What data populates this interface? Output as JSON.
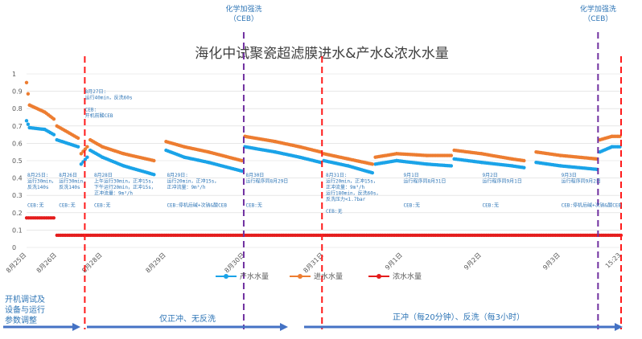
{
  "colors": {
    "product": "#1aa3e8",
    "feed": "#ed7d31",
    "concentrate": "#e41c1c",
    "red_line": "#ff1a1a",
    "purple_line": "#7030a0",
    "annotation": "#2e75b6",
    "grid": "#d9d9d9",
    "arrow": "#4472c4"
  },
  "chart_data": {
    "type": "scatter",
    "title": "海化中试聚瓷超滤膜进水&产水&浓水水量",
    "ylim": [
      0,
      1
    ],
    "yticks": [
      "0",
      "0.1",
      "0.2",
      "0.3",
      "0.4",
      "0.5",
      "0.6",
      "0.7",
      "0.8",
      "0.9",
      "1"
    ],
    "xlim": [
      0,
      9.8
    ],
    "xticks": [
      {
        "x": 0,
        "label": "8月25日"
      },
      {
        "x": 0.5,
        "label": "8月26日"
      },
      {
        "x": 1.25,
        "label": "8月28日"
      },
      {
        "x": 2.3,
        "label": "8月29日"
      },
      {
        "x": 3.6,
        "label": "8月30日"
      },
      {
        "x": 4.9,
        "label": "8月31日"
      },
      {
        "x": 6.2,
        "label": "9月1日"
      },
      {
        "x": 7.5,
        "label": "9月2日"
      },
      {
        "x": 8.8,
        "label": "9月3日"
      },
      {
        "x": 9.8,
        "label": "15:23"
      }
    ],
    "legend": {
      "placement": "bottom",
      "items": [
        "产水水量",
        "进水水量",
        "浓水水量"
      ]
    },
    "series": [
      {
        "name": "产水水量",
        "color_key": "product",
        "segments": [
          [
            [
              0,
              0.73
            ],
            [
              0.05,
              0.69
            ],
            [
              0.3,
              0.68
            ],
            [
              0.45,
              0.65
            ]
          ],
          [
            [
              0.5,
              0.62
            ],
            [
              0.85,
              0.58
            ]
          ],
          [
            [
              0.9,
              0.48
            ],
            [
              1.0,
              0.52
            ]
          ],
          [
            [
              1.05,
              0.56
            ],
            [
              1.25,
              0.52
            ],
            [
              1.6,
              0.47
            ],
            [
              2.1,
              0.42
            ]
          ],
          [
            [
              2.3,
              0.56
            ],
            [
              2.6,
              0.52
            ],
            [
              3.0,
              0.49
            ],
            [
              3.55,
              0.44
            ]
          ],
          [
            [
              3.6,
              0.58
            ],
            [
              4.1,
              0.55
            ],
            [
              4.5,
              0.52
            ],
            [
              4.85,
              0.49
            ]
          ],
          [
            [
              4.9,
              0.5
            ],
            [
              5.3,
              0.47
            ],
            [
              5.7,
              0.43
            ]
          ],
          [
            [
              5.75,
              0.48
            ],
            [
              6.1,
              0.5
            ],
            [
              6.6,
              0.48
            ],
            [
              7.0,
              0.47
            ]
          ],
          [
            [
              7.05,
              0.51
            ],
            [
              7.5,
              0.49
            ],
            [
              8.0,
              0.47
            ],
            [
              8.2,
              0.46
            ]
          ],
          [
            [
              8.4,
              0.49
            ],
            [
              8.8,
              0.47
            ],
            [
              9.4,
              0.45
            ]
          ],
          [
            [
              9.45,
              0.55
            ],
            [
              9.65,
              0.58
            ],
            [
              9.78,
              0.58
            ]
          ]
        ]
      },
      {
        "name": "进水水量",
        "color_key": "feed",
        "segments": [
          [
            [
              0,
              0.95
            ],
            [
              0.05,
              0.82
            ],
            [
              0.3,
              0.78
            ],
            [
              0.45,
              0.74
            ]
          ],
          [
            [
              0.5,
              0.7
            ],
            [
              0.85,
              0.63
            ]
          ],
          [
            [
              0.9,
              0.54
            ],
            [
              1.0,
              0.58
            ]
          ],
          [
            [
              1.05,
              0.62
            ],
            [
              1.25,
              0.58
            ],
            [
              1.6,
              0.54
            ],
            [
              2.1,
              0.5
            ]
          ],
          [
            [
              2.3,
              0.61
            ],
            [
              2.6,
              0.58
            ],
            [
              3.0,
              0.55
            ],
            [
              3.55,
              0.5
            ]
          ],
          [
            [
              3.6,
              0.64
            ],
            [
              4.1,
              0.61
            ],
            [
              4.5,
              0.58
            ],
            [
              4.85,
              0.55
            ]
          ],
          [
            [
              4.9,
              0.54
            ],
            [
              5.3,
              0.51
            ],
            [
              5.7,
              0.48
            ]
          ],
          [
            [
              5.75,
              0.52
            ],
            [
              6.1,
              0.54
            ],
            [
              6.6,
              0.53
            ],
            [
              7.0,
              0.53
            ]
          ],
          [
            [
              7.05,
              0.56
            ],
            [
              7.5,
              0.54
            ],
            [
              8.0,
              0.51
            ],
            [
              8.2,
              0.5
            ]
          ],
          [
            [
              8.4,
              0.55
            ],
            [
              8.8,
              0.53
            ],
            [
              9.4,
              0.51
            ]
          ],
          [
            [
              9.45,
              0.62
            ],
            [
              9.65,
              0.64
            ],
            [
              9.78,
              0.64
            ]
          ]
        ]
      },
      {
        "name": "浓水水量",
        "color_key": "concentrate",
        "segments": [
          [
            [
              0,
              0.17
            ],
            [
              0.45,
              0.17
            ]
          ],
          [
            [
              0.5,
              0.07
            ],
            [
              9.8,
              0.07
            ]
          ]
        ]
      }
    ],
    "vlines": [
      {
        "x": 0.96,
        "style": "red-dash"
      },
      {
        "x": 3.58,
        "style": "purple-dash"
      },
      {
        "x": 4.87,
        "style": "red-dash"
      },
      {
        "x": 9.42,
        "style": "purple-dash"
      },
      {
        "x": 9.8,
        "style": "red-dash"
      }
    ],
    "ceb_labels": [
      "化学加强洗",
      "（CEB）",
      "化学加强洗",
      "（CEB）"
    ],
    "annotations": [
      {
        "x": 0.0,
        "lines": [
          "8月25日:",
          "运行30min，",
          "反洗140s",
          "",
          "",
          "CEB:无"
        ]
      },
      {
        "x": 0.52,
        "lines": [
          "8月26日",
          "运行30min，",
          "反洗140s",
          "",
          "",
          "CEB:无"
        ]
      },
      {
        "x": 0.95,
        "lines": [
          "8月27日:",
          "运行40min，反洗60s",
          "",
          "CEB:",
          "开机前酸CEB"
        ]
      },
      {
        "x": 1.1,
        "lines": [
          "8月28日",
          "上午运行30min，正冲15s，",
          "下午运行20min，正冲15s，",
          "正冲流量：9m³/h",
          "",
          "CEB:无"
        ]
      },
      {
        "x": 2.3,
        "lines": [
          "8月29日:",
          "运行20min，正冲15s，",
          "正冲流量：9m³/h",
          "",
          "",
          "CEB:停机后碱+次钠&酸CEB"
        ]
      },
      {
        "x": 3.6,
        "lines": [
          "8月30日",
          "运行程序同8月29日",
          "",
          "",
          "",
          "CEB:无"
        ]
      },
      {
        "x": 4.92,
        "lines": [
          "8月31日:",
          "运行20min，正冲15s，",
          "正冲流量：9m³/h",
          "运行180min，反洗60s，",
          "反洗压力<1.7bar",
          "",
          "CEB:无"
        ]
      },
      {
        "x": 6.2,
        "lines": [
          "9月1日",
          "运行程序同8月31日",
          "",
          "",
          "",
          "CEB:无"
        ]
      },
      {
        "x": 7.5,
        "lines": [
          "9月2日",
          "运行程序同9月1日",
          "",
          "",
          "",
          "CEB:无"
        ]
      },
      {
        "x": 8.8,
        "lines": [
          "9月3日",
          "运行程序同9月2日",
          "",
          "",
          "",
          "CEB:停机后碱+次钠&酸CEB"
        ]
      }
    ],
    "phases": [
      {
        "label_lines": [
          "开机调试及",
          "设备与运行",
          "参数调整"
        ]
      },
      {
        "label_lines": [
          "仅正冲、无反洗"
        ]
      },
      {
        "label_lines": [
          "正冲（每20分钟）、反洗（每3小时）"
        ]
      }
    ]
  }
}
